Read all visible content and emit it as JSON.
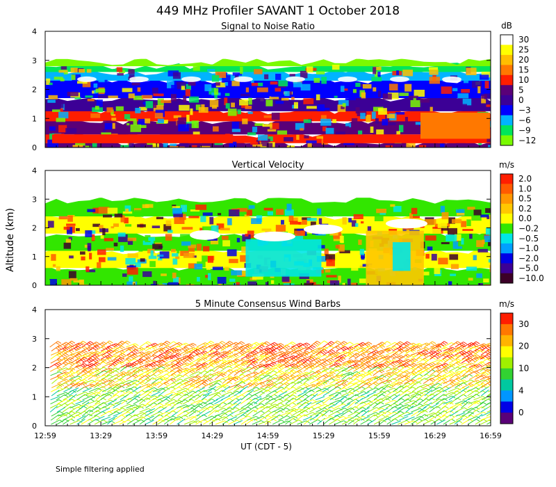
{
  "figure": {
    "title": "449 MHz Profiler SAVANT   1 October 2018",
    "ylabel": "Altitude (km)",
    "xlabel": "UT  (CDT - 5)",
    "footnote": "Simple filtering applied",
    "colors": {
      "background": "#ffffff",
      "axis": "#000000"
    }
  },
  "chart_data": [
    {
      "type": "heatmap",
      "title": "Signal to Noise Ratio",
      "colorbar_unit": "dB",
      "colorbar_ticks": [
        "30",
        "25",
        "20",
        "15",
        "10",
        "5",
        "0",
        "−3",
        "−6",
        "−9",
        "−12"
      ],
      "colorbar_colors": [
        "#ffffff",
        "#ffff00",
        "#ffbe00",
        "#ff7800",
        "#ff1e00",
        "#5a0078",
        "#3c0096",
        "#0000ff",
        "#00b4ff",
        "#00e65a",
        "#7afa00"
      ],
      "yticks": [
        "0",
        "1",
        "2",
        "3",
        "4"
      ],
      "ylim": [
        0,
        4
      ],
      "layers": [
        {
          "from": 0.0,
          "to": 0.15,
          "color": "#5a0078"
        },
        {
          "from": 0.15,
          "to": 0.45,
          "color": "#ff1e00"
        },
        {
          "from": 0.45,
          "to": 0.9,
          "color": "#5a0078"
        },
        {
          "from": 0.9,
          "to": 1.25,
          "color": "#ff1e00"
        },
        {
          "from": 1.25,
          "to": 1.7,
          "color": "#3c0096"
        },
        {
          "from": 1.7,
          "to": 2.3,
          "color": "#0000ff"
        },
        {
          "from": 2.3,
          "to": 2.6,
          "color": "#00b4ff"
        },
        {
          "from": 2.6,
          "to": 2.8,
          "color": "#00e65a"
        },
        {
          "from": 2.8,
          "to": 2.95,
          "color": "#7afa00"
        }
      ]
    },
    {
      "type": "heatmap",
      "title": "Vertical Velocity",
      "colorbar_unit": "m/s",
      "colorbar_ticks": [
        "2.0",
        "1.0",
        "0.5",
        "0.2",
        "0.0",
        "−0.2",
        "−0.5",
        "−1.0",
        "−2.0",
        "−5.0",
        "−10.0"
      ],
      "colorbar_colors": [
        "#ff1e00",
        "#ff5a00",
        "#ff9600",
        "#ffc800",
        "#ffff00",
        "#32e600",
        "#00e6e6",
        "#00a0ff",
        "#0000e6",
        "#3c0096",
        "#3c0028"
      ],
      "yticks": [
        "0",
        "1",
        "2",
        "3",
        "4"
      ],
      "ylim": [
        0,
        4
      ],
      "layers": [
        {
          "from": 0.0,
          "to": 0.6,
          "color": "#32e600"
        },
        {
          "from": 0.6,
          "to": 1.2,
          "color": "#ffff00"
        },
        {
          "from": 1.2,
          "to": 1.8,
          "color": "#32e600"
        },
        {
          "from": 1.8,
          "to": 2.4,
          "color": "#ffff00"
        },
        {
          "from": 2.4,
          "to": 2.95,
          "color": "#32e600"
        }
      ],
      "patches": [
        {
          "x0": 0.45,
          "x1": 0.62,
          "y0": 0.3,
          "y1": 1.6,
          "color": "#00e6e6"
        },
        {
          "x0": 0.72,
          "x1": 0.85,
          "y0": 0.0,
          "y1": 1.9,
          "color": "#ffc800"
        },
        {
          "x0": 0.78,
          "x1": 0.82,
          "y0": 0.5,
          "y1": 1.5,
          "color": "#00e6e6"
        }
      ]
    },
    {
      "type": "wind_barbs",
      "title": "5 Minute Consensus Wind Barbs",
      "colorbar_unit": "m/s",
      "colorbar_ticks": [
        "30",
        "20",
        "10",
        "4",
        "0"
      ],
      "colorbar_colors": [
        "#ff1e00",
        "#ff7800",
        "#ffb400",
        "#ffff00",
        "#a0f000",
        "#32d232",
        "#00c8a0",
        "#0096ff",
        "#0000e6",
        "#5a0078"
      ],
      "yticks": [
        "0",
        "1",
        "2",
        "3",
        "4"
      ],
      "ylim": [
        0,
        4
      ],
      "xticks": [
        "12:59",
        "13:29",
        "13:59",
        "14:29",
        "14:59",
        "15:29",
        "15:59",
        "16:29",
        "16:59"
      ]
    }
  ]
}
